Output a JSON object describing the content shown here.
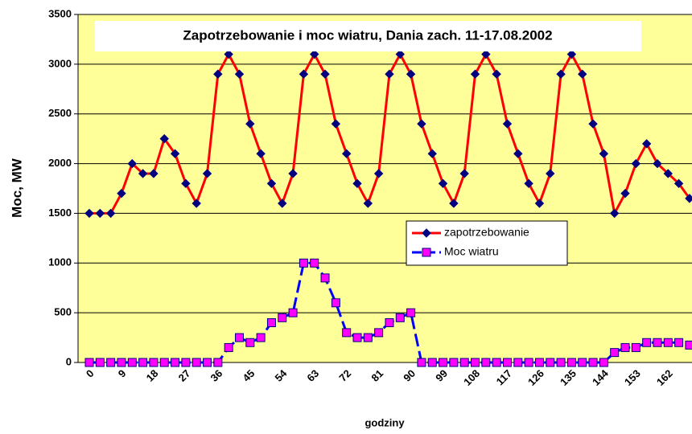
{
  "chart_data": {
    "type": "line",
    "title": "Zapotrzebowanie i moc wiatru, Dania zach. 11-17.08.2002",
    "y_label": "Moc, MW",
    "x_label": "godziny",
    "categories": [
      0,
      null,
      null,
      9,
      null,
      null,
      18,
      null,
      null,
      27,
      null,
      null,
      36,
      null,
      null,
      45,
      null,
      null,
      54,
      null,
      null,
      63,
      null,
      null,
      72,
      null,
      null,
      81,
      null,
      null,
      90,
      null,
      null,
      99,
      null,
      null,
      108,
      null,
      null,
      117,
      null,
      null,
      126,
      null,
      null,
      135,
      null,
      null,
      144,
      null,
      null,
      153,
      null,
      null,
      162,
      null,
      null
    ],
    "series": [
      {
        "name": "zapotrzebowanie",
        "color": "#ff0000",
        "marker_color": "#000080",
        "values": [
          1500,
          1500,
          1500,
          1700,
          2000,
          1900,
          1900,
          2250,
          2100,
          1800,
          1600,
          1900,
          2900,
          3100,
          2900,
          2400,
          2100,
          1800,
          1600,
          1900,
          2900,
          3100,
          2900,
          2400,
          2100,
          1800,
          1600,
          1900,
          2900,
          3100,
          2900,
          2400,
          2100,
          1800,
          1600,
          1900,
          2900,
          3100,
          2900,
          2400,
          2100,
          1800,
          1600,
          1900,
          2900,
          3100,
          2900,
          2400,
          2100,
          1500,
          1700,
          2000,
          2200,
          2000,
          1900,
          1800,
          1650
        ]
      },
      {
        "name": "Moc wiatru",
        "color": "#0000ff",
        "marker_color": "#ff00ff",
        "dashed": true,
        "values": [
          0,
          0,
          0,
          0,
          0,
          0,
          0,
          0,
          0,
          0,
          0,
          0,
          0,
          150,
          250,
          200,
          250,
          400,
          450,
          500,
          1000,
          1000,
          850,
          600,
          300,
          250,
          250,
          300,
          400,
          450,
          500,
          0,
          0,
          0,
          0,
          0,
          0,
          0,
          0,
          0,
          0,
          0,
          0,
          0,
          0,
          0,
          0,
          0,
          0,
          100,
          150,
          150,
          200,
          200,
          200,
          200,
          175
        ]
      }
    ],
    "ylim": [
      0,
      3500
    ],
    "yticks": [
      0,
      500,
      1000,
      1500,
      2000,
      2500,
      3000,
      3500
    ],
    "grid": true
  }
}
